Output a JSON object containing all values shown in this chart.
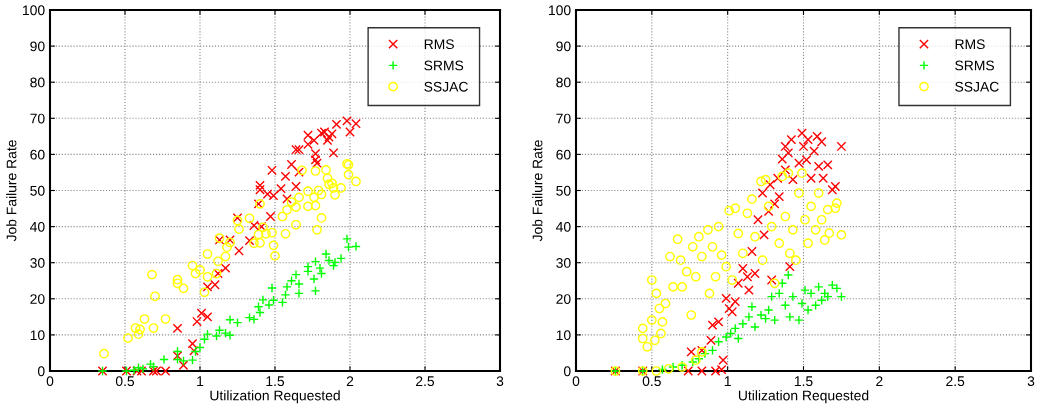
{
  "chart_data": [
    {
      "type": "scatter",
      "xlabel": "Utilization Requested",
      "ylabel": "Job Failure Rate",
      "xlim": [
        0,
        3
      ],
      "ylim": [
        0,
        100
      ],
      "xticks": [
        0,
        0.5,
        1,
        1.5,
        2,
        2.5,
        3
      ],
      "yticks": [
        0,
        10,
        20,
        30,
        40,
        50,
        60,
        70,
        80,
        90,
        100
      ],
      "grid": true,
      "legend": "top right",
      "series": [
        {
          "name": "RMS",
          "color": "#ff0000",
          "marker": "cross",
          "x": [
            0.35,
            0.51,
            0.58,
            0.61,
            0.69,
            0.71,
            0.77,
            0.85,
            0.85,
            0.89,
            0.95,
            0.96,
            0.98,
            1.01,
            1.05,
            1.05,
            1.1,
            1.12,
            1.17,
            1.13,
            1.2,
            1.25,
            1.26,
            1.33,
            1.36,
            1.41,
            1.4,
            1.4,
            1.39,
            1.45,
            1.47,
            1.48,
            1.49,
            1.54,
            1.57,
            1.58,
            1.61,
            1.64,
            1.64,
            1.66,
            1.66,
            1.72,
            1.72,
            1.76,
            1.77,
            1.77,
            1.78,
            1.81,
            1.83,
            1.85,
            1.86,
            1.88,
            1.89,
            1.91,
            1.98,
            2.0,
            2.04
          ],
          "values": [
            0,
            0,
            0,
            0,
            0,
            0,
            0,
            11.8,
            4.2,
            1.6,
            7.6,
            5.6,
            13.7,
            16,
            15,
            23.3,
            23.9,
            27,
            28.5,
            36.3,
            36.3,
            42.4,
            33.3,
            36.1,
            40.3,
            40,
            51.4,
            50.2,
            46.3,
            49,
            42.8,
            55.6,
            48.6,
            50.5,
            53.9,
            47.7,
            57.2,
            51.1,
            61.3,
            61.3,
            55.1,
            65.3,
            62.8,
            63.9,
            60.2,
            58.5,
            57.6,
            65.9,
            66.2,
            63.9,
            64.8,
            65.7,
            60.4,
            68.3,
            69.3,
            66.2,
            68.5
          ]
        },
        {
          "name": "SRMS",
          "color": "#00ff00",
          "marker": "plus",
          "x": [
            0.35,
            0.51,
            0.56,
            0.59,
            0.62,
            0.67,
            0.69,
            0.76,
            0.85,
            0.85,
            0.89,
            0.95,
            0.97,
            1.0,
            1.03,
            1.05,
            1.11,
            1.13,
            1.17,
            1.2,
            1.2,
            1.25,
            1.33,
            1.36,
            1.39,
            1.4,
            1.42,
            1.46,
            1.48,
            1.49,
            1.55,
            1.57,
            1.58,
            1.61,
            1.64,
            1.66,
            1.66,
            1.72,
            1.72,
            1.76,
            1.77,
            1.77,
            1.8,
            1.81,
            1.84,
            1.86,
            1.89,
            1.9,
            1.94,
            1.98,
            1.99,
            2.04
          ],
          "values": [
            0,
            0,
            0.2,
            0.9,
            0.6,
            1.9,
            1.2,
            3.2,
            5.4,
            3.2,
            2.8,
            3,
            5.4,
            6.5,
            8.8,
            10.2,
            9.7,
            11.3,
            10.5,
            9.9,
            14.2,
            13.4,
            14.8,
            14.3,
            17.8,
            16.2,
            19.7,
            18.3,
            23,
            19.6,
            19,
            21.1,
            23.3,
            25,
            26.7,
            24.1,
            21.5,
            28.9,
            27.6,
            25.5,
            22.2,
            30.3,
            28.5,
            27,
            32.4,
            30.6,
            29.2,
            30.1,
            31.2,
            36.6,
            34.3,
            34.5
          ]
        },
        {
          "name": "SSJAC",
          "color": "#ffff00",
          "marker": "circle",
          "x": [
            0.36,
            0.52,
            0.57,
            0.59,
            0.6,
            0.63,
            0.68,
            0.69,
            0.7,
            0.77,
            0.85,
            0.85,
            0.89,
            0.95,
            0.97,
            1.0,
            1.03,
            1.05,
            1.05,
            1.11,
            1.12,
            1.13,
            1.17,
            1.18,
            1.2,
            1.25,
            1.26,
            1.33,
            1.36,
            1.39,
            1.4,
            1.4,
            1.42,
            1.44,
            1.48,
            1.49,
            1.5,
            1.55,
            1.57,
            1.58,
            1.61,
            1.64,
            1.64,
            1.66,
            1.68,
            1.72,
            1.72,
            1.76,
            1.77,
            1.77,
            1.78,
            1.79,
            1.81,
            1.81,
            1.84,
            1.85,
            1.86,
            1.88,
            1.89,
            1.9,
            1.94,
            1.98,
            1.99,
            1.99,
            2.04
          ],
          "values": [
            4.8,
            9.1,
            11.9,
            10.2,
            11.5,
            14.4,
            26.7,
            11.9,
            20.7,
            14.4,
            25.3,
            24.3,
            22.9,
            29.2,
            27,
            28,
            21.8,
            26.1,
            32.4,
            27,
            30.4,
            36.8,
            31.7,
            34.3,
            35.6,
            41.7,
            39.3,
            42.3,
            35.4,
            37.8,
            35.5,
            46.3,
            39.8,
            38,
            38.3,
            34.8,
            31.9,
            42.8,
            38,
            44.6,
            46.8,
            45.4,
            40.5,
            48.1,
            55.6,
            49.8,
            45.6,
            48.1,
            55.4,
            45.8,
            39.1,
            50,
            42.4,
            48.9,
            55.7,
            53.4,
            51.7,
            52,
            50.7,
            48.8,
            50.7,
            57.4,
            54.4,
            57.1,
            52.5
          ]
        }
      ]
    },
    {
      "type": "scatter",
      "xlabel": "Utilization Requested",
      "ylabel": "Job Failure Rate",
      "xlim": [
        0,
        3
      ],
      "ylim": [
        0,
        100
      ],
      "xticks": [
        0,
        0.5,
        1,
        1.5,
        2,
        2.5,
        3
      ],
      "yticks": [
        0,
        10,
        20,
        30,
        40,
        50,
        60,
        70,
        80,
        90,
        100
      ],
      "grid": true,
      "legend": "top right",
      "series": [
        {
          "name": "RMS",
          "color": "#ff0000",
          "marker": "cross",
          "x": [
            0.26,
            0.44,
            0.74,
            0.83,
            0.92,
            0.96,
            0.76,
            0.83,
            0.89,
            0.9,
            0.94,
            0.97,
            0.99,
            1.01,
            1.03,
            1.05,
            1.07,
            1.1,
            1.13,
            1.14,
            1.16,
            1.18,
            1.2,
            1.23,
            1.24,
            1.27,
            1.28,
            1.29,
            1.31,
            1.33,
            1.34,
            1.36,
            1.38,
            1.38,
            1.4,
            1.41,
            1.42,
            1.43,
            1.47,
            1.49,
            1.5,
            1.52,
            1.53,
            1.55,
            1.57,
            1.59,
            1.6,
            1.62,
            1.63,
            1.66,
            1.69,
            1.71,
            1.75
          ],
          "values": [
            0,
            0,
            0,
            0,
            0,
            0.4,
            5.3,
            5.7,
            8.5,
            12.7,
            13.6,
            3,
            20.1,
            17.3,
            16.4,
            19.2,
            24.3,
            28.4,
            26.1,
            22.4,
            33.1,
            27,
            41.9,
            49.3,
            37.7,
            44.2,
            51.6,
            25.2,
            46.3,
            53.4,
            48.3,
            58.7,
            55.7,
            62.2,
            60.4,
            28.9,
            64.1,
            53,
            57.6,
            65.9,
            62.2,
            58.5,
            64.1,
            53.4,
            60.9,
            65,
            56.7,
            63.5,
            53.4,
            57.1,
            50.2,
            51.1,
            62.2
          ]
        },
        {
          "name": "SRMS",
          "color": "#00ff00",
          "marker": "plus",
          "x": [
            0.26,
            0.44,
            0.57,
            0.64,
            0.7,
            0.77,
            0.81,
            0.85,
            0.9,
            0.94,
            0.99,
            1.02,
            1.05,
            1.07,
            1.1,
            1.14,
            1.16,
            1.18,
            1.22,
            1.25,
            1.27,
            1.29,
            1.31,
            1.34,
            1.36,
            1.38,
            1.4,
            1.41,
            1.43,
            1.47,
            1.49,
            1.51,
            1.53,
            1.55,
            1.58,
            1.6,
            1.62,
            1.64,
            1.66,
            1.69,
            1.72,
            1.75
          ],
          "values": [
            0,
            0,
            0.4,
            1.1,
            1.6,
            2.5,
            3.4,
            4.8,
            5.7,
            8.1,
            9.4,
            10.4,
            11.8,
            9,
            13.1,
            15,
            17.8,
            12.2,
            15.5,
            14.5,
            16.9,
            20.6,
            14.1,
            21.5,
            24.3,
            18.2,
            26.6,
            15,
            20.6,
            14.1,
            18.7,
            22.4,
            16.9,
            21.5,
            18.2,
            23.3,
            19.6,
            21.5,
            20.6,
            23.8,
            22.9,
            20.6
          ]
        },
        {
          "name": "SSJAC",
          "color": "#ffff00",
          "marker": "circle",
          "x": [
            0.26,
            0.44,
            0.53,
            0.61,
            0.7,
            0.79,
            0.83,
            0.44,
            0.44,
            0.47,
            0.5,
            0.5,
            0.52,
            0.53,
            0.55,
            0.56,
            0.57,
            0.59,
            0.62,
            0.64,
            0.67,
            0.69,
            0.7,
            0.73,
            0.76,
            0.77,
            0.79,
            0.81,
            0.83,
            0.87,
            0.88,
            0.9,
            0.92,
            0.94,
            0.96,
            0.99,
            1.01,
            1.03,
            1.05,
            1.07,
            1.1,
            1.13,
            1.16,
            1.18,
            1.22,
            1.23,
            1.25,
            1.27,
            1.29,
            1.31,
            1.34,
            1.36,
            1.38,
            1.4,
            1.41,
            1.43,
            1.45,
            1.47,
            1.49,
            1.51,
            1.53,
            1.55,
            1.58,
            1.6,
            1.62,
            1.64,
            1.66,
            1.67,
            1.71,
            1.72,
            1.75
          ],
          "values": [
            0,
            0,
            0,
            0.6,
            1.1,
            3,
            5.3,
            11.8,
            9,
            6.7,
            25.2,
            14.1,
            8.5,
            21.5,
            17.3,
            10.4,
            13.6,
            18.7,
            31.7,
            23.3,
            36.5,
            30.7,
            23.3,
            27.5,
            15.5,
            34.4,
            26.1,
            37.2,
            31.7,
            39.1,
            21.5,
            34.4,
            26.1,
            40,
            32.1,
            28.9,
            44.4,
            25.2,
            45.1,
            38.1,
            32.6,
            43.7,
            47.6,
            37.2,
            52.5,
            30.7,
            53,
            45.6,
            40,
            24.3,
            35.4,
            53.9,
            42.8,
            54.8,
            32.6,
            39.1,
            30.7,
            49.3,
            54.8,
            41.9,
            35.4,
            45.6,
            39.1,
            49.3,
            41.9,
            36.3,
            44.7,
            38.2,
            45.1,
            46.5,
            37.7
          ]
        }
      ]
    }
  ]
}
